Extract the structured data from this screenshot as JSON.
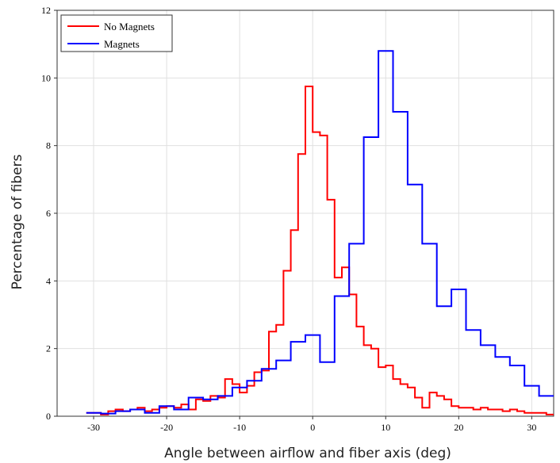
{
  "chart_data": {
    "type": "line",
    "step": true,
    "xlabel": "Angle between airflow and fiber axis (deg)",
    "ylabel": "Percentage of fibers",
    "xlim": [
      -35,
      33
    ],
    "ylim": [
      0,
      12
    ],
    "xticks": [
      -30,
      -20,
      -10,
      0,
      10,
      20,
      30
    ],
    "yticks": [
      0,
      2,
      4,
      6,
      8,
      10,
      12
    ],
    "grid": true,
    "legend_position": "top-left",
    "series": [
      {
        "name": "No Magnets",
        "color": "#ff0000",
        "x": [
          -31,
          -30,
          -29,
          -28,
          -27,
          -26,
          -25,
          -24,
          -23,
          -22,
          -21,
          -20,
          -19,
          -18,
          -17,
          -16,
          -15,
          -14,
          -13,
          -12,
          -11,
          -10,
          -9,
          -8,
          -7,
          -6,
          -5,
          -4,
          -3,
          -2,
          -1,
          0,
          1,
          2,
          3,
          4,
          5,
          6,
          7,
          8,
          9,
          10,
          11,
          12,
          13,
          14,
          15,
          16,
          17,
          18,
          19,
          20,
          21,
          22,
          23,
          24,
          25,
          26,
          27,
          28,
          29,
          30,
          31,
          32,
          33
        ],
        "y": [
          0.1,
          0.1,
          0.05,
          0.15,
          0.2,
          0.15,
          0.2,
          0.25,
          0.15,
          0.2,
          0.25,
          0.3,
          0.25,
          0.35,
          0.2,
          0.5,
          0.45,
          0.6,
          0.55,
          1.1,
          0.95,
          0.7,
          0.9,
          1.3,
          1.35,
          2.5,
          2.7,
          4.3,
          5.5,
          7.75,
          9.75,
          8.4,
          8.3,
          6.4,
          4.1,
          4.4,
          3.6,
          2.65,
          2.1,
          2.0,
          1.45,
          1.5,
          1.1,
          0.95,
          0.85,
          0.55,
          0.25,
          0.7,
          0.6,
          0.5,
          0.3,
          0.25,
          0.25,
          0.2,
          0.25,
          0.2,
          0.2,
          0.15,
          0.2,
          0.15,
          0.1,
          0.1,
          0.1,
          0.05,
          0.05
        ]
      },
      {
        "name": "Magnets",
        "color": "#0000ff",
        "x": [
          -31,
          -29,
          -27,
          -25,
          -23,
          -21,
          -19,
          -17,
          -15,
          -13,
          -11,
          -9,
          -7,
          -5,
          -3,
          -1,
          1,
          3,
          5,
          7,
          9,
          11,
          13,
          15,
          17,
          19,
          21,
          23,
          25,
          27,
          29,
          31,
          33
        ],
        "y": [
          0.1,
          0.08,
          0.15,
          0.2,
          0.1,
          0.3,
          0.2,
          0.55,
          0.5,
          0.6,
          0.85,
          1.05,
          1.4,
          1.65,
          2.2,
          2.4,
          1.6,
          3.55,
          5.1,
          8.25,
          10.8,
          9.0,
          6.85,
          5.1,
          3.25,
          3.75,
          2.55,
          2.1,
          1.75,
          1.5,
          0.9,
          0.6,
          0.4
        ]
      }
    ]
  }
}
